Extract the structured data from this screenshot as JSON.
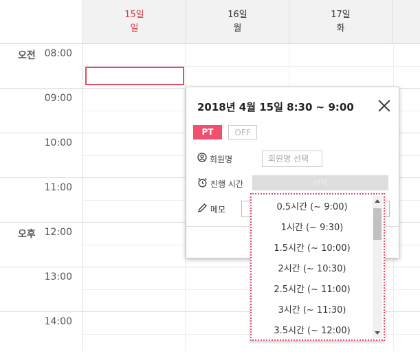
{
  "days": [
    {
      "num": "15일",
      "weekday": "일",
      "highlight": true
    },
    {
      "num": "16일",
      "weekday": "월",
      "highlight": false
    },
    {
      "num": "17일",
      "weekday": "화",
      "highlight": false
    }
  ],
  "hours": [
    {
      "ampm": "오전",
      "time": "08:00"
    },
    {
      "ampm": "",
      "time": "09:00"
    },
    {
      "ampm": "",
      "time": "10:00"
    },
    {
      "ampm": "",
      "time": "11:00"
    },
    {
      "ampm": "오후",
      "time": "12:00"
    },
    {
      "ampm": "",
      "time": "13:00"
    },
    {
      "ampm": "",
      "time": "14:00"
    }
  ],
  "popup": {
    "title": "2018년 4월 15일 8:30 ~ 9:00",
    "type_pt": "PT",
    "type_off": "OFF",
    "member_label": "회원명",
    "member_placeholder": "회원명 선택",
    "duration_label": "진행 시간",
    "duration_value": "선택",
    "memo_label": "메모"
  },
  "duration_options": [
    "0.5시간 (~ 9:00)",
    "1시간 (~ 9:30)",
    "1.5시간 (~ 10:00)",
    "2시간 (~ 10:30)",
    "2.5시간 (~ 11:00)",
    "3시간 (~ 11:30)",
    "3.5시간 (~ 12:00)"
  ],
  "colors": {
    "accent": "#f0506e",
    "sunday": "#d63b4a",
    "header_bg": "#f2f2f2"
  }
}
